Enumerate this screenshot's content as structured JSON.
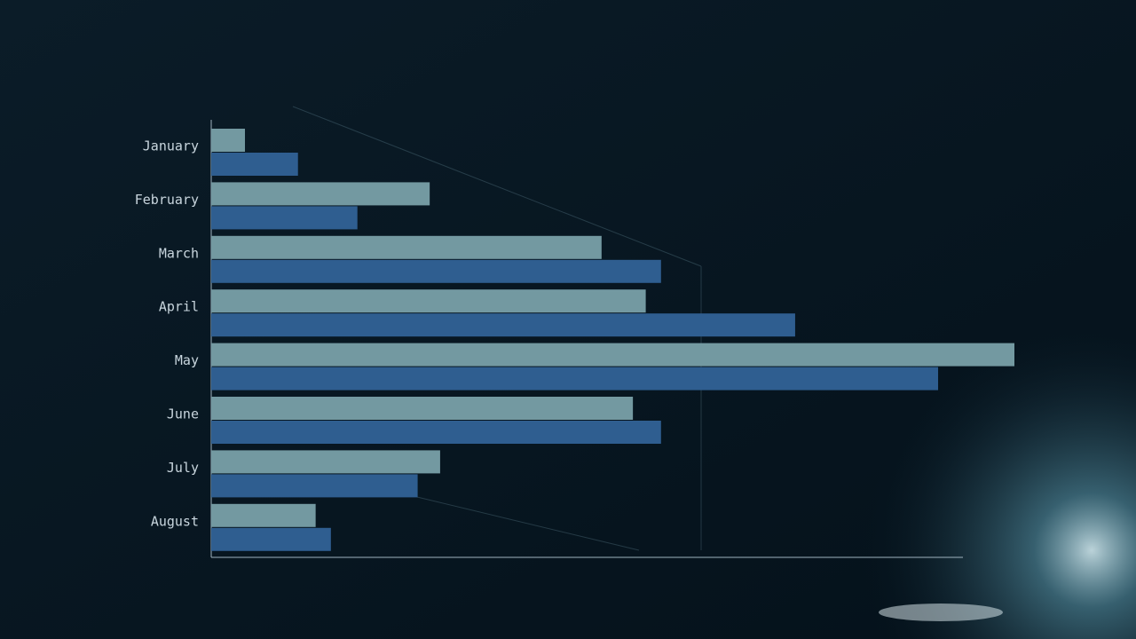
{
  "chart_data": {
    "type": "bar",
    "orientation": "horizontal",
    "categories": [
      "January",
      "February",
      "March",
      "April",
      "May",
      "June",
      "July",
      "August"
    ],
    "series": [
      {
        "color": "#7399a1",
        "values": [
          4.2,
          27.2,
          48.6,
          54.1,
          100,
          52.5,
          28.5,
          13.0
        ]
      },
      {
        "color": "#2f5e90",
        "values": [
          10.8,
          18.2,
          56.0,
          72.7,
          90.5,
          56.0,
          25.7,
          14.9
        ]
      }
    ],
    "xlim": [
      0,
      100
    ]
  }
}
